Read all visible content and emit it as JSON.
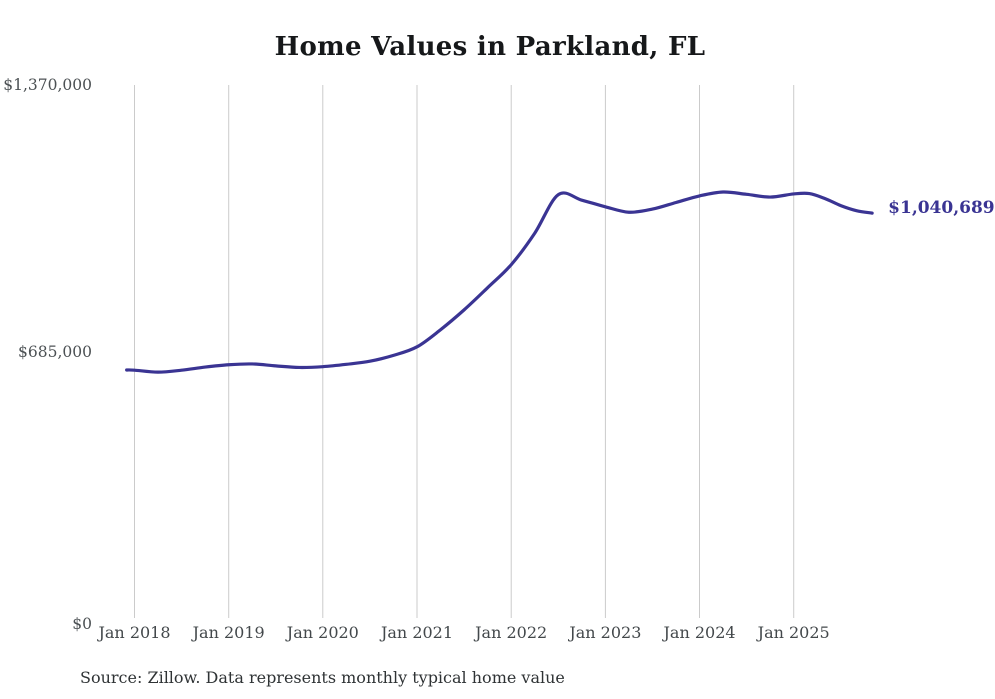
{
  "title": "Home Values in Parkland, FL",
  "latest_value_label": "$1,040,689",
  "source_note": "Source: Zillow. Data represents monthly typical home value",
  "colors": {
    "line": "#3a3493",
    "latest_value_label": "#3a3493",
    "gridline": "#cbcbcb",
    "axis_tick_label": "#4a4f52",
    "title": "#16181a",
    "source_note": "#2f3335",
    "background": "#ffffff"
  },
  "chart_data": {
    "type": "line",
    "title": "Home Values in Parkland, FL",
    "xlabel": "",
    "ylabel": "",
    "ylim": [
      0,
      1370000
    ],
    "grid": "vertical-only",
    "legend": "none",
    "y_ticks": [
      {
        "value": 0,
        "label": "$0"
      },
      {
        "value": 685000,
        "label": "$685,000"
      },
      {
        "value": 1370000,
        "label": "$1,370,000"
      }
    ],
    "x_ticks": [
      {
        "date": "2018-01",
        "label": "Jan 2018"
      },
      {
        "date": "2019-01",
        "label": "Jan 2019"
      },
      {
        "date": "2020-01",
        "label": "Jan 2020"
      },
      {
        "date": "2021-01",
        "label": "Jan 2021"
      },
      {
        "date": "2022-01",
        "label": "Jan 2022"
      },
      {
        "date": "2023-01",
        "label": "Jan 2023"
      },
      {
        "date": "2024-01",
        "label": "Jan 2024"
      },
      {
        "date": "2025-01",
        "label": "Jan 2025"
      }
    ],
    "series": [
      {
        "name": "Monthly typical home value",
        "points": [
          [
            "2017-12",
            637500
          ],
          [
            "2018-01",
            637000
          ],
          [
            "2018-04",
            632000
          ],
          [
            "2018-07",
            637000
          ],
          [
            "2018-10",
            645000
          ],
          [
            "2019-01",
            651000
          ],
          [
            "2019-04",
            653000
          ],
          [
            "2019-07",
            648000
          ],
          [
            "2019-10",
            644000
          ],
          [
            "2020-01",
            646000
          ],
          [
            "2020-04",
            652000
          ],
          [
            "2020-07",
            660000
          ],
          [
            "2020-10",
            675000
          ],
          [
            "2021-01",
            697000
          ],
          [
            "2021-04",
            741000
          ],
          [
            "2021-07",
            792000
          ],
          [
            "2021-10",
            849000
          ],
          [
            "2022-01",
            908000
          ],
          [
            "2022-04",
            989000
          ],
          [
            "2022-07",
            1088000
          ],
          [
            "2022-10",
            1074000
          ],
          [
            "2023-01",
            1057000
          ],
          [
            "2023-04",
            1043000
          ],
          [
            "2023-07",
            1051000
          ],
          [
            "2023-10",
            1068000
          ],
          [
            "2024-01",
            1085000
          ],
          [
            "2024-04",
            1095000
          ],
          [
            "2024-07",
            1089000
          ],
          [
            "2024-10",
            1082000
          ],
          [
            "2025-01",
            1090000
          ],
          [
            "2025-03",
            1091000
          ],
          [
            "2025-05",
            1078000
          ],
          [
            "2025-07",
            1060000
          ],
          [
            "2025-09",
            1047000
          ],
          [
            "2025-11",
            1040689
          ]
        ],
        "last_point_annotation": "$1,040,689"
      }
    ]
  }
}
